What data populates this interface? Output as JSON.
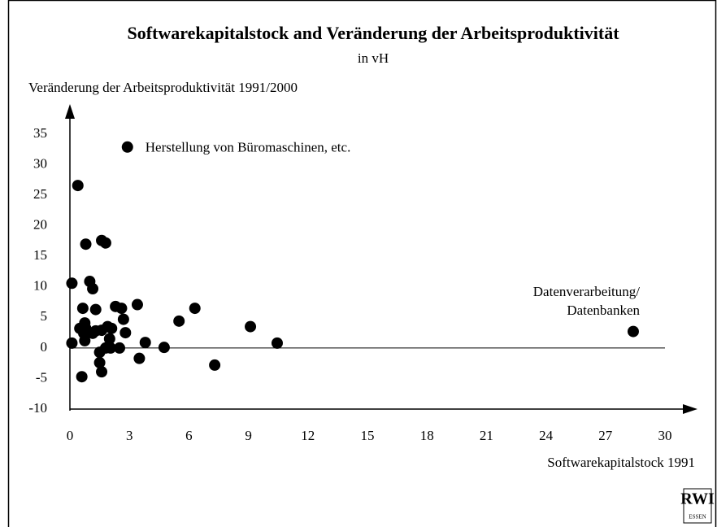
{
  "chart_data": {
    "type": "scatter",
    "title": "Softwarekapitalstock and Veränderung der Arbeitsproduktivität",
    "subtitle": "in vH",
    "y_label": "Veränderung der Arbeitsproduktivität 1991/2000",
    "x_label": "Softwarekapitalstock 1991",
    "color": "#000000",
    "x": [
      2.9,
      0.4,
      0.8,
      1.6,
      1.8,
      1.0,
      0.1,
      1.15,
      0.65,
      1.3,
      2.3,
      2.6,
      3.4,
      6.3,
      2.7,
      5.5,
      0.75,
      0.5,
      0.8,
      1.9,
      2.1,
      1.3,
      1.6,
      0.7,
      1.15,
      2.8,
      9.1,
      28.4,
      0.75,
      2.0,
      3.8,
      0.1,
      10.45,
      1.8,
      2.05,
      2.5,
      4.75,
      1.5,
      1.5,
      3.5,
      7.3,
      0.6,
      1.6
    ],
    "values": [
      32.9,
      26.6,
      17.0,
      17.6,
      17.2,
      10.9,
      10.6,
      9.7,
      6.5,
      6.3,
      6.8,
      6.5,
      7.1,
      6.5,
      4.7,
      4.4,
      4.1,
      3.2,
      3.2,
      3.5,
      3.2,
      2.8,
      2.9,
      2.4,
      2.4,
      2.5,
      3.5,
      2.7,
      1.2,
      1.5,
      0.9,
      0.8,
      0.8,
      0,
      0,
      0,
      0.1,
      -0.7,
      -2.4,
      -1.7,
      -2.8,
      -4.7,
      -3.9
    ],
    "annotations": [
      "Herstellung von Büromaschinen, etc.",
      "Datenverarbeitung/",
      "Datenbanken"
    ],
    "xlim": [
      0,
      30
    ],
    "xticks": [
      0,
      3,
      6,
      9,
      12,
      15,
      18,
      21,
      24,
      27,
      30
    ],
    "ylim": [
      -10,
      35
    ],
    "yticks": [
      -10,
      -5,
      0,
      5,
      10,
      15,
      20,
      25,
      30,
      35
    ]
  },
  "logo": {
    "text": "RWI",
    "subtext": "ESSEN"
  }
}
